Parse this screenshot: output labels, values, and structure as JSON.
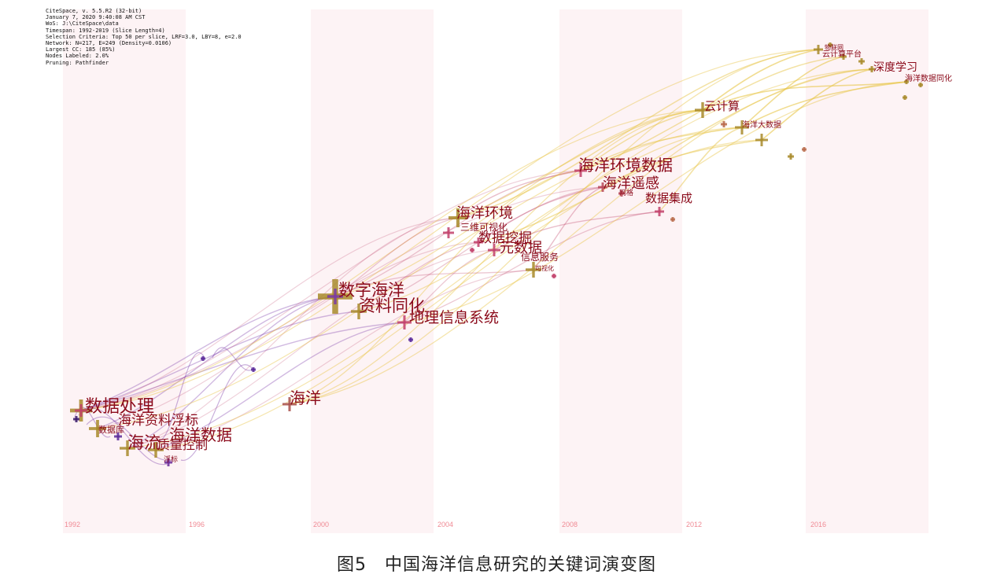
{
  "metadata": [
    "CiteSpace, v. 5.5.R2 (32-bit)",
    "January 7, 2020 9:40:08 AM CST",
    "WoS: J:\\CiteSpace\\data",
    "Timespan: 1992-2019 (Slice Length=4)",
    "Selection Criteria: Top 50 per slice, LRF=3.0, LBY=8, e=2.0",
    "Network: N=217, E=249 (Density=0.0106)",
    "Largest CC: 185 (85%)",
    "Nodes Labeled: 2.0%",
    "Pruning: Pathfinder"
  ],
  "years": [
    "1992",
    "1996",
    "2000",
    "2004",
    "2008",
    "2012",
    "2016"
  ],
  "keywords": [
    "数据处理",
    "海洋资料浮标",
    "数据库",
    "海流",
    "质量控制",
    "海洋数据",
    "浮标",
    "数字海洋",
    "资料同化",
    "地理信息系统",
    "海洋",
    "海洋环境",
    "三维可视化",
    "数据挖掘",
    "元数据",
    "信息服务",
    "可视化",
    "海洋环境数据",
    "海洋遥感",
    "网格",
    "数据集成",
    "云计算",
    "海洋大数据",
    "物联网",
    "云计算平台",
    "深度学习",
    "海洋数据同化"
  ],
  "colors": {
    "early": "#7a3aa8",
    "middle": "#c0456a",
    "late": "#e8c64a",
    "node_cross": "#a8892a",
    "label": "#8b0a1a",
    "band": "#fdf3f5"
  },
  "caption": "图5　中国海洋信息研究的关键词演变图"
}
